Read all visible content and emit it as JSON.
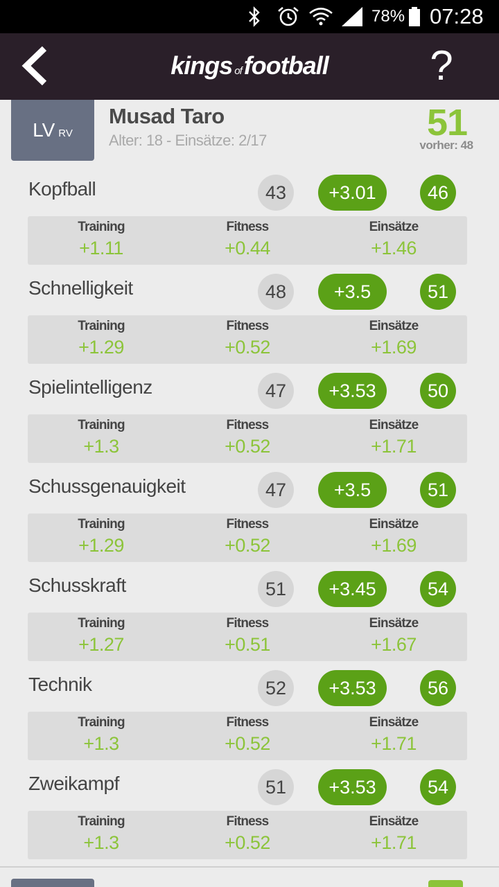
{
  "status_bar": {
    "battery_percent": "78%",
    "time": "07:28",
    "icons": [
      "bluetooth-icon",
      "alarm-icon",
      "wifi-icon",
      "signal-icon",
      "battery-icon"
    ]
  },
  "app_bar": {
    "logo_word1": "kings",
    "logo_of": "of",
    "logo_word2": "football",
    "help_label": "?"
  },
  "player": {
    "position_main": "LV",
    "position_sub": "RV",
    "name": "Musad Taro",
    "info": "Alter: 18 - Einsätze: 2/17",
    "rating": "51",
    "previous_rating": "vorher: 48"
  },
  "breakdown_labels": {
    "training": "Training",
    "fitness": "Fitness",
    "einsaetze": "Einsätze"
  },
  "skills": [
    {
      "name": "Kopfball",
      "old": "43",
      "delta": "+3.01",
      "new": "46",
      "training": "+1.11",
      "fitness": "+0.44",
      "einsaetze": "+1.46"
    },
    {
      "name": "Schnelligkeit",
      "old": "48",
      "delta": "+3.5",
      "new": "51",
      "training": "+1.29",
      "fitness": "+0.52",
      "einsaetze": "+1.69"
    },
    {
      "name": "Spielintelligenz",
      "old": "47",
      "delta": "+3.53",
      "new": "50",
      "training": "+1.3",
      "fitness": "+0.52",
      "einsaetze": "+1.71"
    },
    {
      "name": "Schussgenauigkeit",
      "old": "47",
      "delta": "+3.5",
      "new": "51",
      "training": "+1.29",
      "fitness": "+0.52",
      "einsaetze": "+1.69"
    },
    {
      "name": "Schusskraft",
      "old": "51",
      "delta": "+3.45",
      "new": "54",
      "training": "+1.27",
      "fitness": "+0.51",
      "einsaetze": "+1.67"
    },
    {
      "name": "Technik",
      "old": "52",
      "delta": "+3.53",
      "new": "56",
      "training": "+1.3",
      "fitness": "+0.52",
      "einsaetze": "+1.71"
    },
    {
      "name": "Zweikampf",
      "old": "51",
      "delta": "+3.53",
      "new": "54",
      "training": "+1.3",
      "fitness": "+0.52",
      "einsaetze": "+1.71"
    }
  ],
  "colors": {
    "accent_green": "#5ba117",
    "light_green": "#8cc43a",
    "app_bar": "#2a1f29",
    "badge": "#687083"
  }
}
